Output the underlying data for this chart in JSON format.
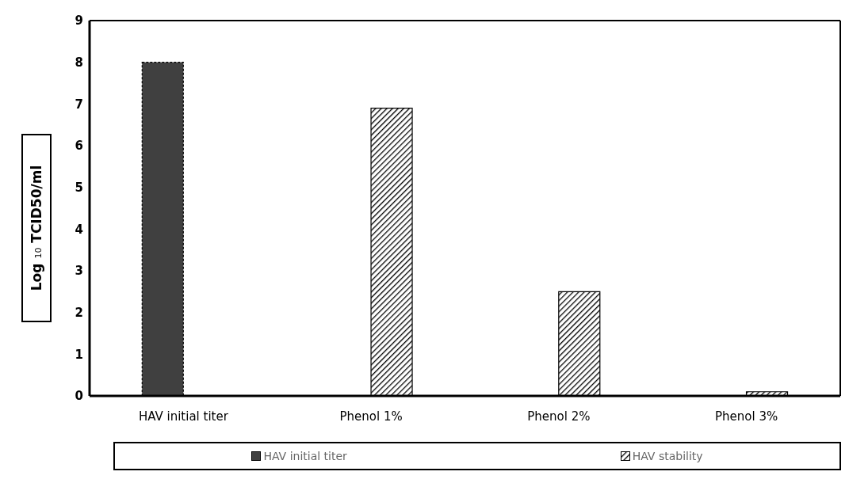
{
  "chart_data": {
    "type": "bar",
    "ylabel": "Log $_{10}$ TCID50/ml",
    "categories": [
      "HAV initial titer",
      "Phenol 1%",
      "Phenol 2%",
      "Phenol 3%"
    ],
    "series": [
      {
        "name": "HAV initial titer",
        "color": "#404040",
        "values": [
          8,
          null,
          null,
          null
        ]
      },
      {
        "name": "HAV stability",
        "color": "#000000",
        "values": [
          null,
          6.9,
          2.5,
          0.1
        ]
      }
    ],
    "ylim": [
      0,
      9
    ],
    "yticks": [
      0,
      1,
      2,
      3,
      4,
      5,
      6,
      7,
      8,
      9
    ],
    "grid": false,
    "legend": "bottom"
  }
}
